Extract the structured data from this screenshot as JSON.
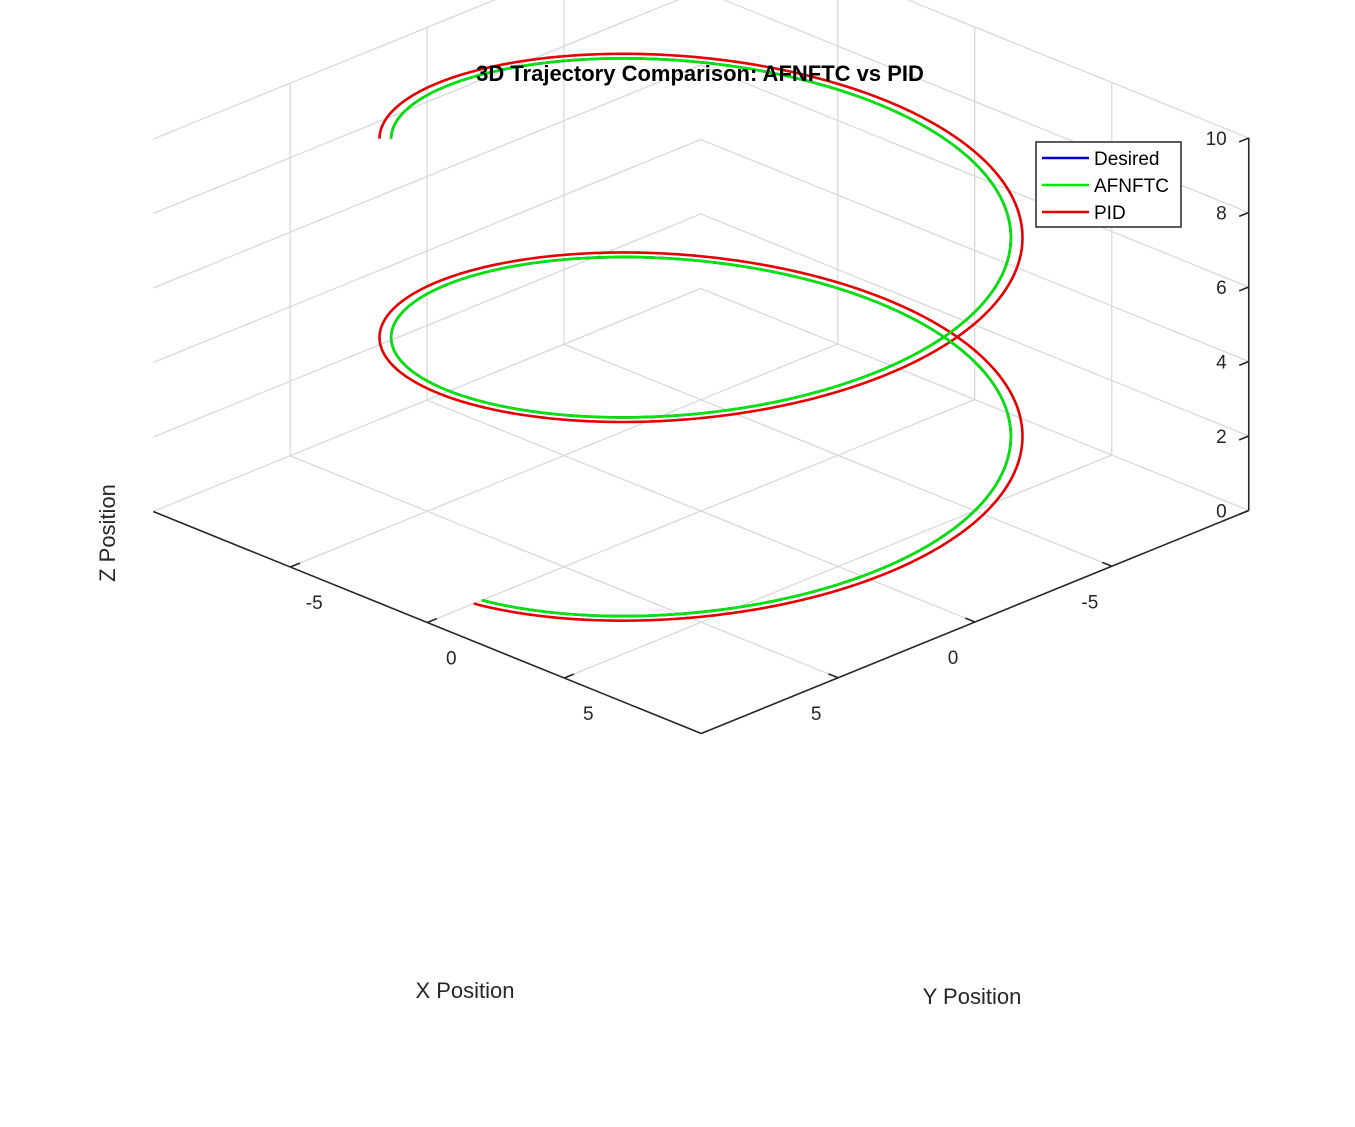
{
  "chart_data": {
    "type": "line3d",
    "title": "3D Trajectory Comparison: AFNFTC vs PID",
    "xlabel": "X Position",
    "ylabel": "Y Position",
    "zlabel": "Z Position",
    "xlim": [
      -10,
      10
    ],
    "ylim": [
      -10,
      10
    ],
    "zlim": [
      0,
      10
    ],
    "x_ticks": [
      -5,
      0,
      5
    ],
    "y_ticks": [
      -5,
      0,
      5
    ],
    "z_ticks": [
      0,
      2,
      4,
      6,
      8,
      10
    ],
    "grid": true,
    "legend_position": "top-right",
    "series": [
      {
        "name": "Desired",
        "color": "#0000cc",
        "curve": "helix",
        "radius": 8,
        "turns": 1.875,
        "center": [
          0,
          0
        ],
        "z_range": [
          0,
          10
        ],
        "start_point": [
          8,
          0,
          0
        ],
        "end_point": [
          0,
          -8,
          10
        ]
      },
      {
        "name": "AFNFTC",
        "color": "#00e600",
        "curve": "helix",
        "radius": 8,
        "turns": 1.875,
        "center": [
          0,
          0
        ],
        "z_range": [
          0,
          10
        ],
        "start_point": [
          8,
          0,
          0
        ],
        "end_point": [
          0,
          -8,
          10
        ]
      },
      {
        "name": "PID",
        "color": "#e60000",
        "curve": "helix",
        "radius": 8.3,
        "turns": 1.875,
        "center": [
          0,
          0
        ],
        "z_range": [
          0,
          10
        ],
        "start_point": [
          8,
          0,
          0
        ],
        "end_point": [
          0,
          -8.3,
          10
        ]
      }
    ]
  }
}
